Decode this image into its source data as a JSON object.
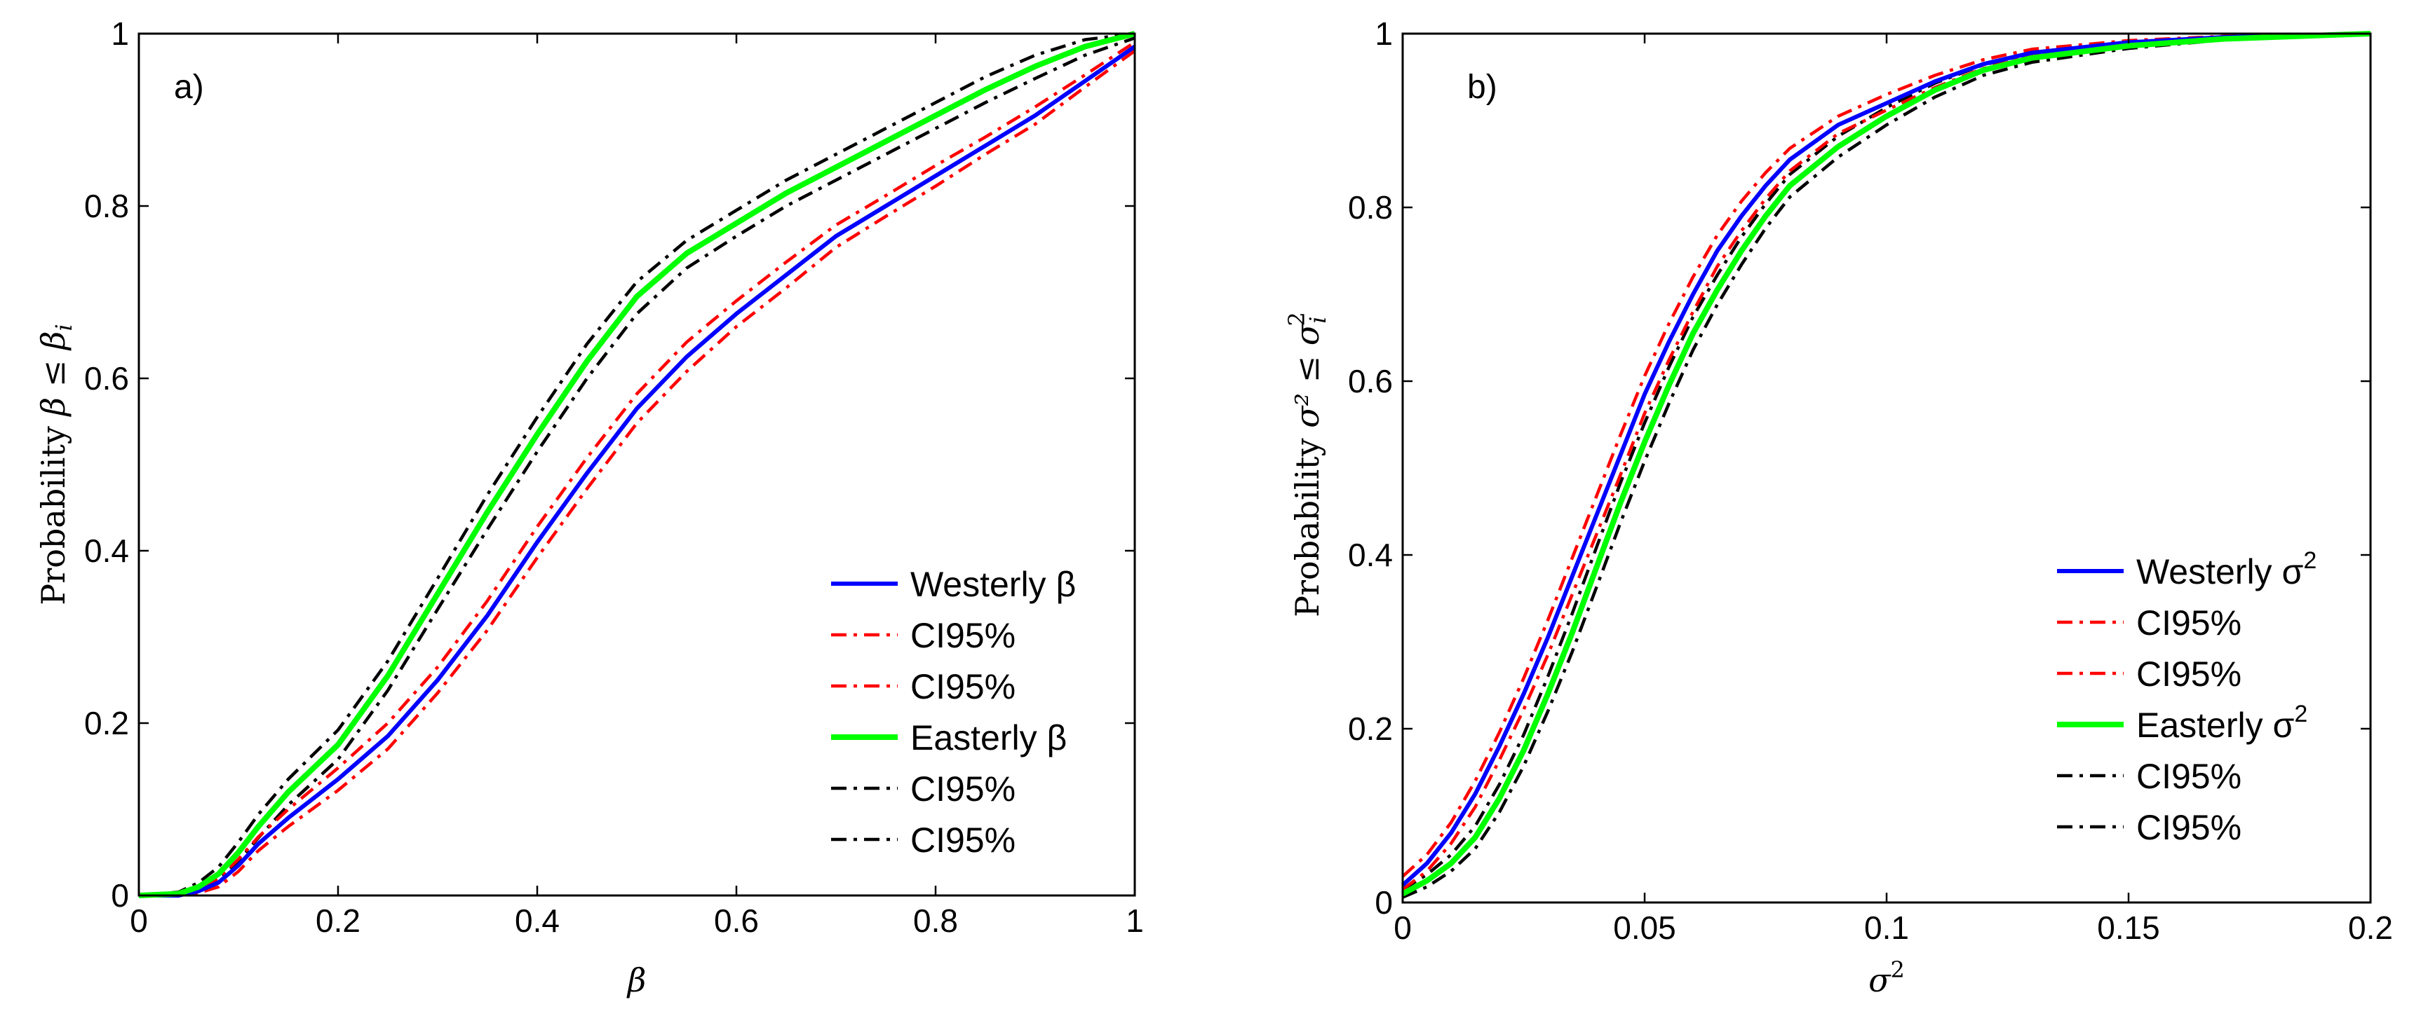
{
  "chart_data": [
    {
      "type": "line",
      "panel_label": "a)",
      "xlabel": "β",
      "ylabel": {
        "prefix": "Probability ",
        "math": "β ≤ β",
        "sub": "i"
      },
      "xlim": [
        0,
        1
      ],
      "ylim": [
        0,
        1
      ],
      "xticks": [
        0,
        0.2,
        0.4,
        0.6,
        0.8,
        1
      ],
      "xtick_labels": [
        "0",
        "0.2",
        "0.4",
        "0.6",
        "0.8",
        "1"
      ],
      "yticks": [
        0,
        0.2,
        0.4,
        0.6,
        0.8,
        1
      ],
      "ytick_labels": [
        "0",
        "0.2",
        "0.4",
        "0.6",
        "0.8",
        "1"
      ],
      "grid": false,
      "legend_position": "bottom-right",
      "series": [
        {
          "name": "Westerly β",
          "label_main": "Westerly β",
          "label_sup": "",
          "color": "#0000ff",
          "style": "solid",
          "x": [
            0,
            0.04,
            0.06,
            0.08,
            0.1,
            0.12,
            0.15,
            0.2,
            0.25,
            0.3,
            0.35,
            0.4,
            0.45,
            0.5,
            0.55,
            0.6,
            0.65,
            0.7,
            0.75,
            0.8,
            0.85,
            0.9,
            0.95,
            1.0
          ],
          "y": [
            0,
            0.0,
            0.005,
            0.015,
            0.035,
            0.06,
            0.09,
            0.135,
            0.185,
            0.25,
            0.325,
            0.41,
            0.49,
            0.565,
            0.625,
            0.675,
            0.72,
            0.765,
            0.8,
            0.835,
            0.87,
            0.905,
            0.945,
            0.985
          ]
        },
        {
          "name": "CI95% upper west",
          "label_main": "CI95%",
          "label_sup": "",
          "color": "#ff0000",
          "style": "dashdot",
          "x": [
            0,
            0.04,
            0.06,
            0.08,
            0.1,
            0.12,
            0.15,
            0.2,
            0.25,
            0.3,
            0.35,
            0.4,
            0.45,
            0.5,
            0.55,
            0.6,
            0.65,
            0.7,
            0.75,
            0.8,
            0.85,
            0.9,
            0.95,
            1.0
          ],
          "y": [
            0,
            0.002,
            0.008,
            0.02,
            0.042,
            0.068,
            0.1,
            0.148,
            0.2,
            0.265,
            0.342,
            0.428,
            0.508,
            0.582,
            0.642,
            0.69,
            0.735,
            0.778,
            0.812,
            0.847,
            0.88,
            0.915,
            0.952,
            0.99
          ]
        },
        {
          "name": "CI95% lower west",
          "label_main": "CI95%",
          "label_sup": "",
          "color": "#ff0000",
          "style": "dashdot",
          "x": [
            0,
            0.04,
            0.06,
            0.08,
            0.1,
            0.12,
            0.15,
            0.2,
            0.25,
            0.3,
            0.35,
            0.4,
            0.45,
            0.5,
            0.55,
            0.6,
            0.65,
            0.7,
            0.75,
            0.8,
            0.85,
            0.9,
            0.95,
            1.0
          ],
          "y": [
            0,
            0.0,
            0.003,
            0.01,
            0.028,
            0.052,
            0.08,
            0.122,
            0.17,
            0.235,
            0.308,
            0.392,
            0.472,
            0.548,
            0.608,
            0.66,
            0.705,
            0.752,
            0.788,
            0.823,
            0.86,
            0.895,
            0.938,
            0.98
          ]
        },
        {
          "name": "Easterly β",
          "label_main": "Easterly β",
          "label_sup": "",
          "color": "#00ff00",
          "style": "solid",
          "x": [
            0,
            0.04,
            0.06,
            0.08,
            0.1,
            0.12,
            0.15,
            0.2,
            0.25,
            0.3,
            0.35,
            0.4,
            0.45,
            0.5,
            0.55,
            0.6,
            0.65,
            0.7,
            0.75,
            0.8,
            0.85,
            0.9,
            0.95,
            1.0
          ],
          "y": [
            0,
            0.002,
            0.01,
            0.025,
            0.05,
            0.08,
            0.12,
            0.175,
            0.255,
            0.35,
            0.445,
            0.535,
            0.62,
            0.695,
            0.745,
            0.78,
            0.815,
            0.845,
            0.875,
            0.905,
            0.935,
            0.962,
            0.985,
            1.0
          ]
        },
        {
          "name": "CI95% upper east",
          "label_main": "CI95%",
          "label_sup": "",
          "color": "#000000",
          "style": "dashdot",
          "x": [
            0,
            0.04,
            0.06,
            0.08,
            0.1,
            0.12,
            0.15,
            0.2,
            0.25,
            0.3,
            0.35,
            0.4,
            0.45,
            0.5,
            0.55,
            0.6,
            0.65,
            0.7,
            0.75,
            0.8,
            0.85,
            0.9,
            0.95,
            1.0
          ],
          "y": [
            0,
            0.004,
            0.015,
            0.033,
            0.062,
            0.094,
            0.135,
            0.192,
            0.272,
            0.368,
            0.465,
            0.555,
            0.64,
            0.712,
            0.76,
            0.795,
            0.83,
            0.86,
            0.89,
            0.92,
            0.95,
            0.975,
            0.993,
            1.0
          ]
        },
        {
          "name": "CI95% lower east",
          "label_main": "CI95%",
          "label_sup": "",
          "color": "#000000",
          "style": "dashdot",
          "x": [
            0,
            0.04,
            0.06,
            0.08,
            0.1,
            0.12,
            0.15,
            0.2,
            0.25,
            0.3,
            0.35,
            0.4,
            0.45,
            0.5,
            0.55,
            0.6,
            0.65,
            0.7,
            0.75,
            0.8,
            0.85,
            0.9,
            0.95,
            1.0
          ],
          "y": [
            0,
            0.001,
            0.006,
            0.018,
            0.04,
            0.067,
            0.105,
            0.158,
            0.238,
            0.332,
            0.425,
            0.515,
            0.6,
            0.675,
            0.728,
            0.765,
            0.8,
            0.83,
            0.86,
            0.89,
            0.92,
            0.948,
            0.975,
            0.995
          ]
        }
      ]
    },
    {
      "type": "line",
      "panel_label": "b)",
      "xlabel": "σ",
      "xlabel_sup": "2",
      "ylabel": {
        "prefix": "Probability ",
        "math": "σ² ≤ σ",
        "sub": "i",
        "sup": "2"
      },
      "xlim": [
        0,
        0.2
      ],
      "ylim": [
        0,
        1
      ],
      "xticks": [
        0,
        0.05,
        0.1,
        0.15,
        0.2
      ],
      "xtick_labels": [
        "0",
        "0.05",
        "0.1",
        "0.15",
        "0.2"
      ],
      "yticks": [
        0,
        0.2,
        0.4,
        0.6,
        0.8,
        1
      ],
      "ytick_labels": [
        "0",
        "0.2",
        "0.4",
        "0.6",
        "0.8",
        "1"
      ],
      "grid": false,
      "legend_position": "bottom-right",
      "series": [
        {
          "name": "Westerly σ2",
          "label_main": "Westerly σ",
          "label_sup": "2",
          "color": "#0000ff",
          "style": "solid",
          "x": [
            0,
            0.005,
            0.01,
            0.015,
            0.02,
            0.025,
            0.03,
            0.035,
            0.04,
            0.045,
            0.05,
            0.055,
            0.06,
            0.065,
            0.07,
            0.075,
            0.08,
            0.09,
            0.1,
            0.11,
            0.12,
            0.13,
            0.15,
            0.17,
            0.2
          ],
          "y": [
            0.02,
            0.045,
            0.08,
            0.125,
            0.18,
            0.24,
            0.305,
            0.375,
            0.445,
            0.515,
            0.585,
            0.645,
            0.7,
            0.75,
            0.79,
            0.825,
            0.855,
            0.895,
            0.92,
            0.945,
            0.965,
            0.978,
            0.99,
            0.996,
            1.0
          ]
        },
        {
          "name": "CI95% upper west",
          "label_main": "CI95%",
          "label_sup": "",
          "color": "#ff0000",
          "style": "dashdot",
          "x": [
            0,
            0.005,
            0.01,
            0.015,
            0.02,
            0.025,
            0.03,
            0.035,
            0.04,
            0.045,
            0.05,
            0.055,
            0.06,
            0.065,
            0.07,
            0.075,
            0.08,
            0.09,
            0.1,
            0.11,
            0.12,
            0.13,
            0.15,
            0.17,
            0.2
          ],
          "y": [
            0.03,
            0.055,
            0.092,
            0.14,
            0.196,
            0.258,
            0.325,
            0.396,
            0.467,
            0.538,
            0.606,
            0.666,
            0.72,
            0.768,
            0.807,
            0.84,
            0.868,
            0.905,
            0.93,
            0.952,
            0.97,
            0.982,
            0.992,
            0.997,
            1.0
          ]
        },
        {
          "name": "CI95% lower west",
          "label_main": "CI95%",
          "label_sup": "",
          "color": "#ff0000",
          "style": "dashdot",
          "x": [
            0,
            0.005,
            0.01,
            0.015,
            0.02,
            0.025,
            0.03,
            0.035,
            0.04,
            0.045,
            0.05,
            0.055,
            0.06,
            0.065,
            0.07,
            0.075,
            0.08,
            0.09,
            0.1,
            0.11,
            0.12,
            0.13,
            0.15,
            0.17,
            0.2
          ],
          "y": [
            0.015,
            0.036,
            0.068,
            0.11,
            0.164,
            0.222,
            0.285,
            0.354,
            0.423,
            0.492,
            0.563,
            0.624,
            0.68,
            0.732,
            0.773,
            0.81,
            0.842,
            0.885,
            0.912,
            0.938,
            0.96,
            0.974,
            0.988,
            0.995,
            1.0
          ]
        },
        {
          "name": "Easterly σ2",
          "label_main": "Easterly σ",
          "label_sup": "2",
          "color": "#00ff00",
          "style": "solid",
          "x": [
            0,
            0.005,
            0.01,
            0.015,
            0.02,
            0.025,
            0.03,
            0.035,
            0.04,
            0.045,
            0.05,
            0.055,
            0.06,
            0.065,
            0.07,
            0.075,
            0.08,
            0.09,
            0.1,
            0.11,
            0.12,
            0.13,
            0.15,
            0.17,
            0.2
          ],
          "y": [
            0.01,
            0.025,
            0.045,
            0.075,
            0.12,
            0.175,
            0.24,
            0.31,
            0.385,
            0.46,
            0.53,
            0.595,
            0.655,
            0.705,
            0.75,
            0.79,
            0.825,
            0.87,
            0.905,
            0.935,
            0.958,
            0.972,
            0.986,
            0.994,
            1.0
          ]
        },
        {
          "name": "CI95% upper east",
          "label_main": "CI95%",
          "label_sup": "",
          "color": "#000000",
          "style": "dashdot",
          "x": [
            0,
            0.005,
            0.01,
            0.015,
            0.02,
            0.025,
            0.03,
            0.035,
            0.04,
            0.045,
            0.05,
            0.055,
            0.06,
            0.065,
            0.07,
            0.075,
            0.08,
            0.09,
            0.1,
            0.11,
            0.12,
            0.13,
            0.15,
            0.17,
            0.2
          ],
          "y": [
            0.015,
            0.032,
            0.055,
            0.088,
            0.136,
            0.193,
            0.26,
            0.332,
            0.408,
            0.483,
            0.552,
            0.616,
            0.674,
            0.722,
            0.766,
            0.804,
            0.838,
            0.882,
            0.915,
            0.943,
            0.964,
            0.977,
            0.989,
            0.995,
            1.0
          ]
        },
        {
          "name": "CI95% lower east",
          "label_main": "CI95%",
          "label_sup": "",
          "color": "#000000",
          "style": "dashdot",
          "x": [
            0,
            0.005,
            0.01,
            0.015,
            0.02,
            0.025,
            0.03,
            0.035,
            0.04,
            0.045,
            0.05,
            0.055,
            0.06,
            0.065,
            0.07,
            0.075,
            0.08,
            0.09,
            0.1,
            0.11,
            0.12,
            0.13,
            0.15,
            0.17,
            0.2
          ],
          "y": [
            0.006,
            0.018,
            0.036,
            0.062,
            0.104,
            0.157,
            0.22,
            0.288,
            0.362,
            0.437,
            0.508,
            0.574,
            0.636,
            0.688,
            0.734,
            0.776,
            0.812,
            0.858,
            0.895,
            0.927,
            0.952,
            0.967,
            0.983,
            0.993,
            1.0
          ]
        }
      ]
    }
  ]
}
